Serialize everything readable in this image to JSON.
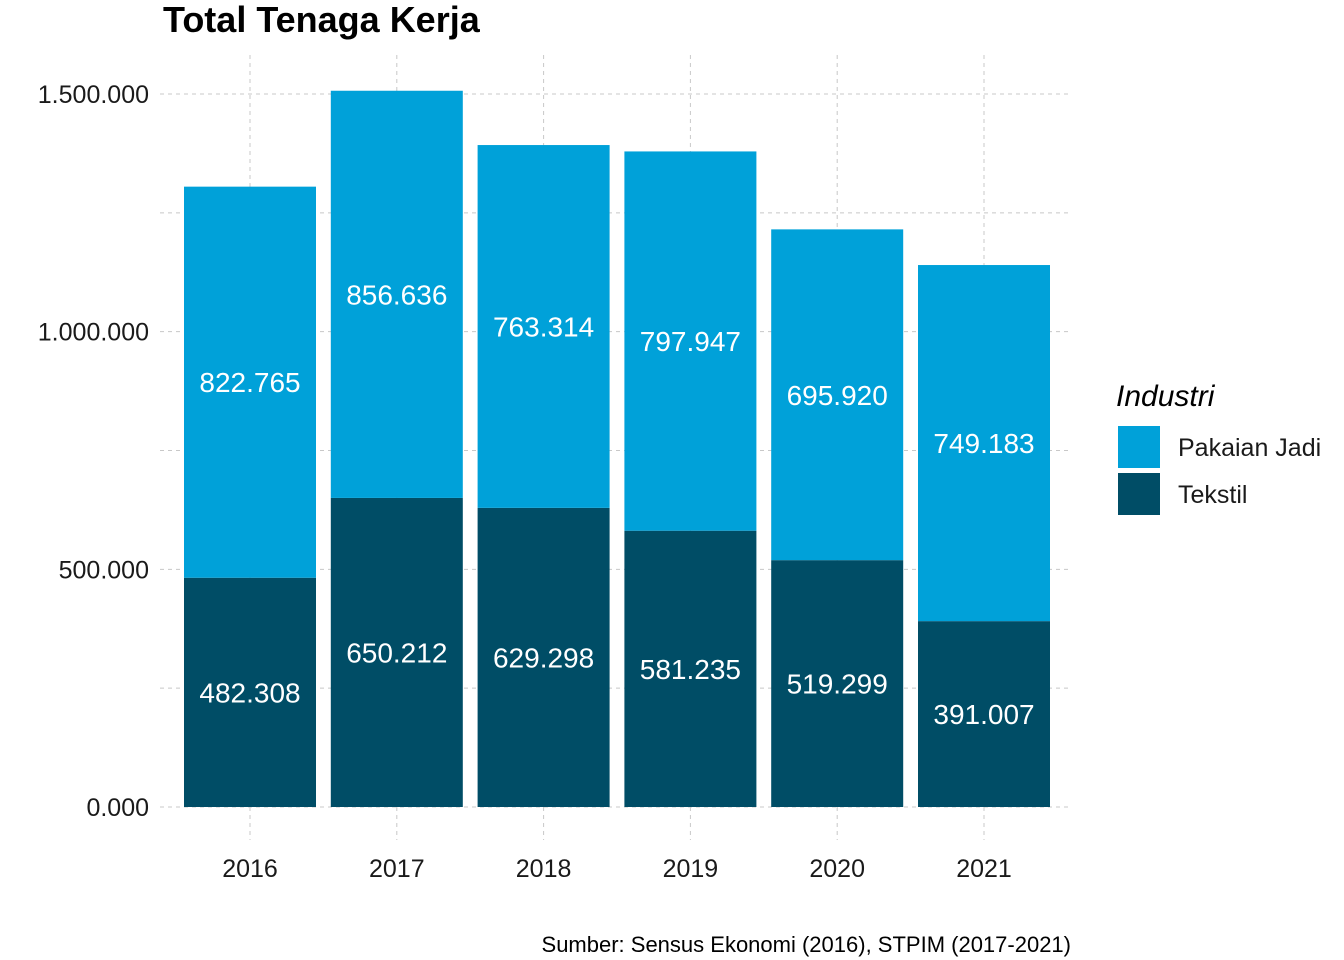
{
  "chart_data": {
    "type": "bar",
    "stacked": true,
    "title": "Total Tenaga Kerja",
    "xlabel": "",
    "ylabel": "",
    "categories": [
      "2016",
      "2017",
      "2018",
      "2019",
      "2020",
      "2021"
    ],
    "series": [
      {
        "name": "Tekstil",
        "color": "#004d66",
        "values": [
          482308,
          650212,
          629298,
          581235,
          519299,
          391007
        ],
        "labels": [
          "482.308",
          "650.212",
          "629.298",
          "581.235",
          "519.299",
          "391.007"
        ]
      },
      {
        "name": "Pakaian Jadi",
        "color": "#00a1d9",
        "values": [
          822765,
          856636,
          763314,
          797947,
          695920,
          749183
        ],
        "labels": [
          "822.765",
          "856.636",
          "763.314",
          "797.947",
          "695.920",
          "749.183"
        ]
      }
    ],
    "ylim": [
      0,
      1500000
    ],
    "yticks": [
      0,
      500000,
      1000000,
      1500000
    ],
    "ytick_labels": [
      "0.000",
      "500.000",
      "1.000.000",
      "1.500.000"
    ],
    "grid": true,
    "legend": {
      "title": "Industri",
      "position": "right",
      "entries": [
        "Pakaian Jadi",
        "Tekstil"
      ]
    },
    "caption": "Sumber: Sensus Ekonomi (2016), STPIM (2017-2021)"
  }
}
